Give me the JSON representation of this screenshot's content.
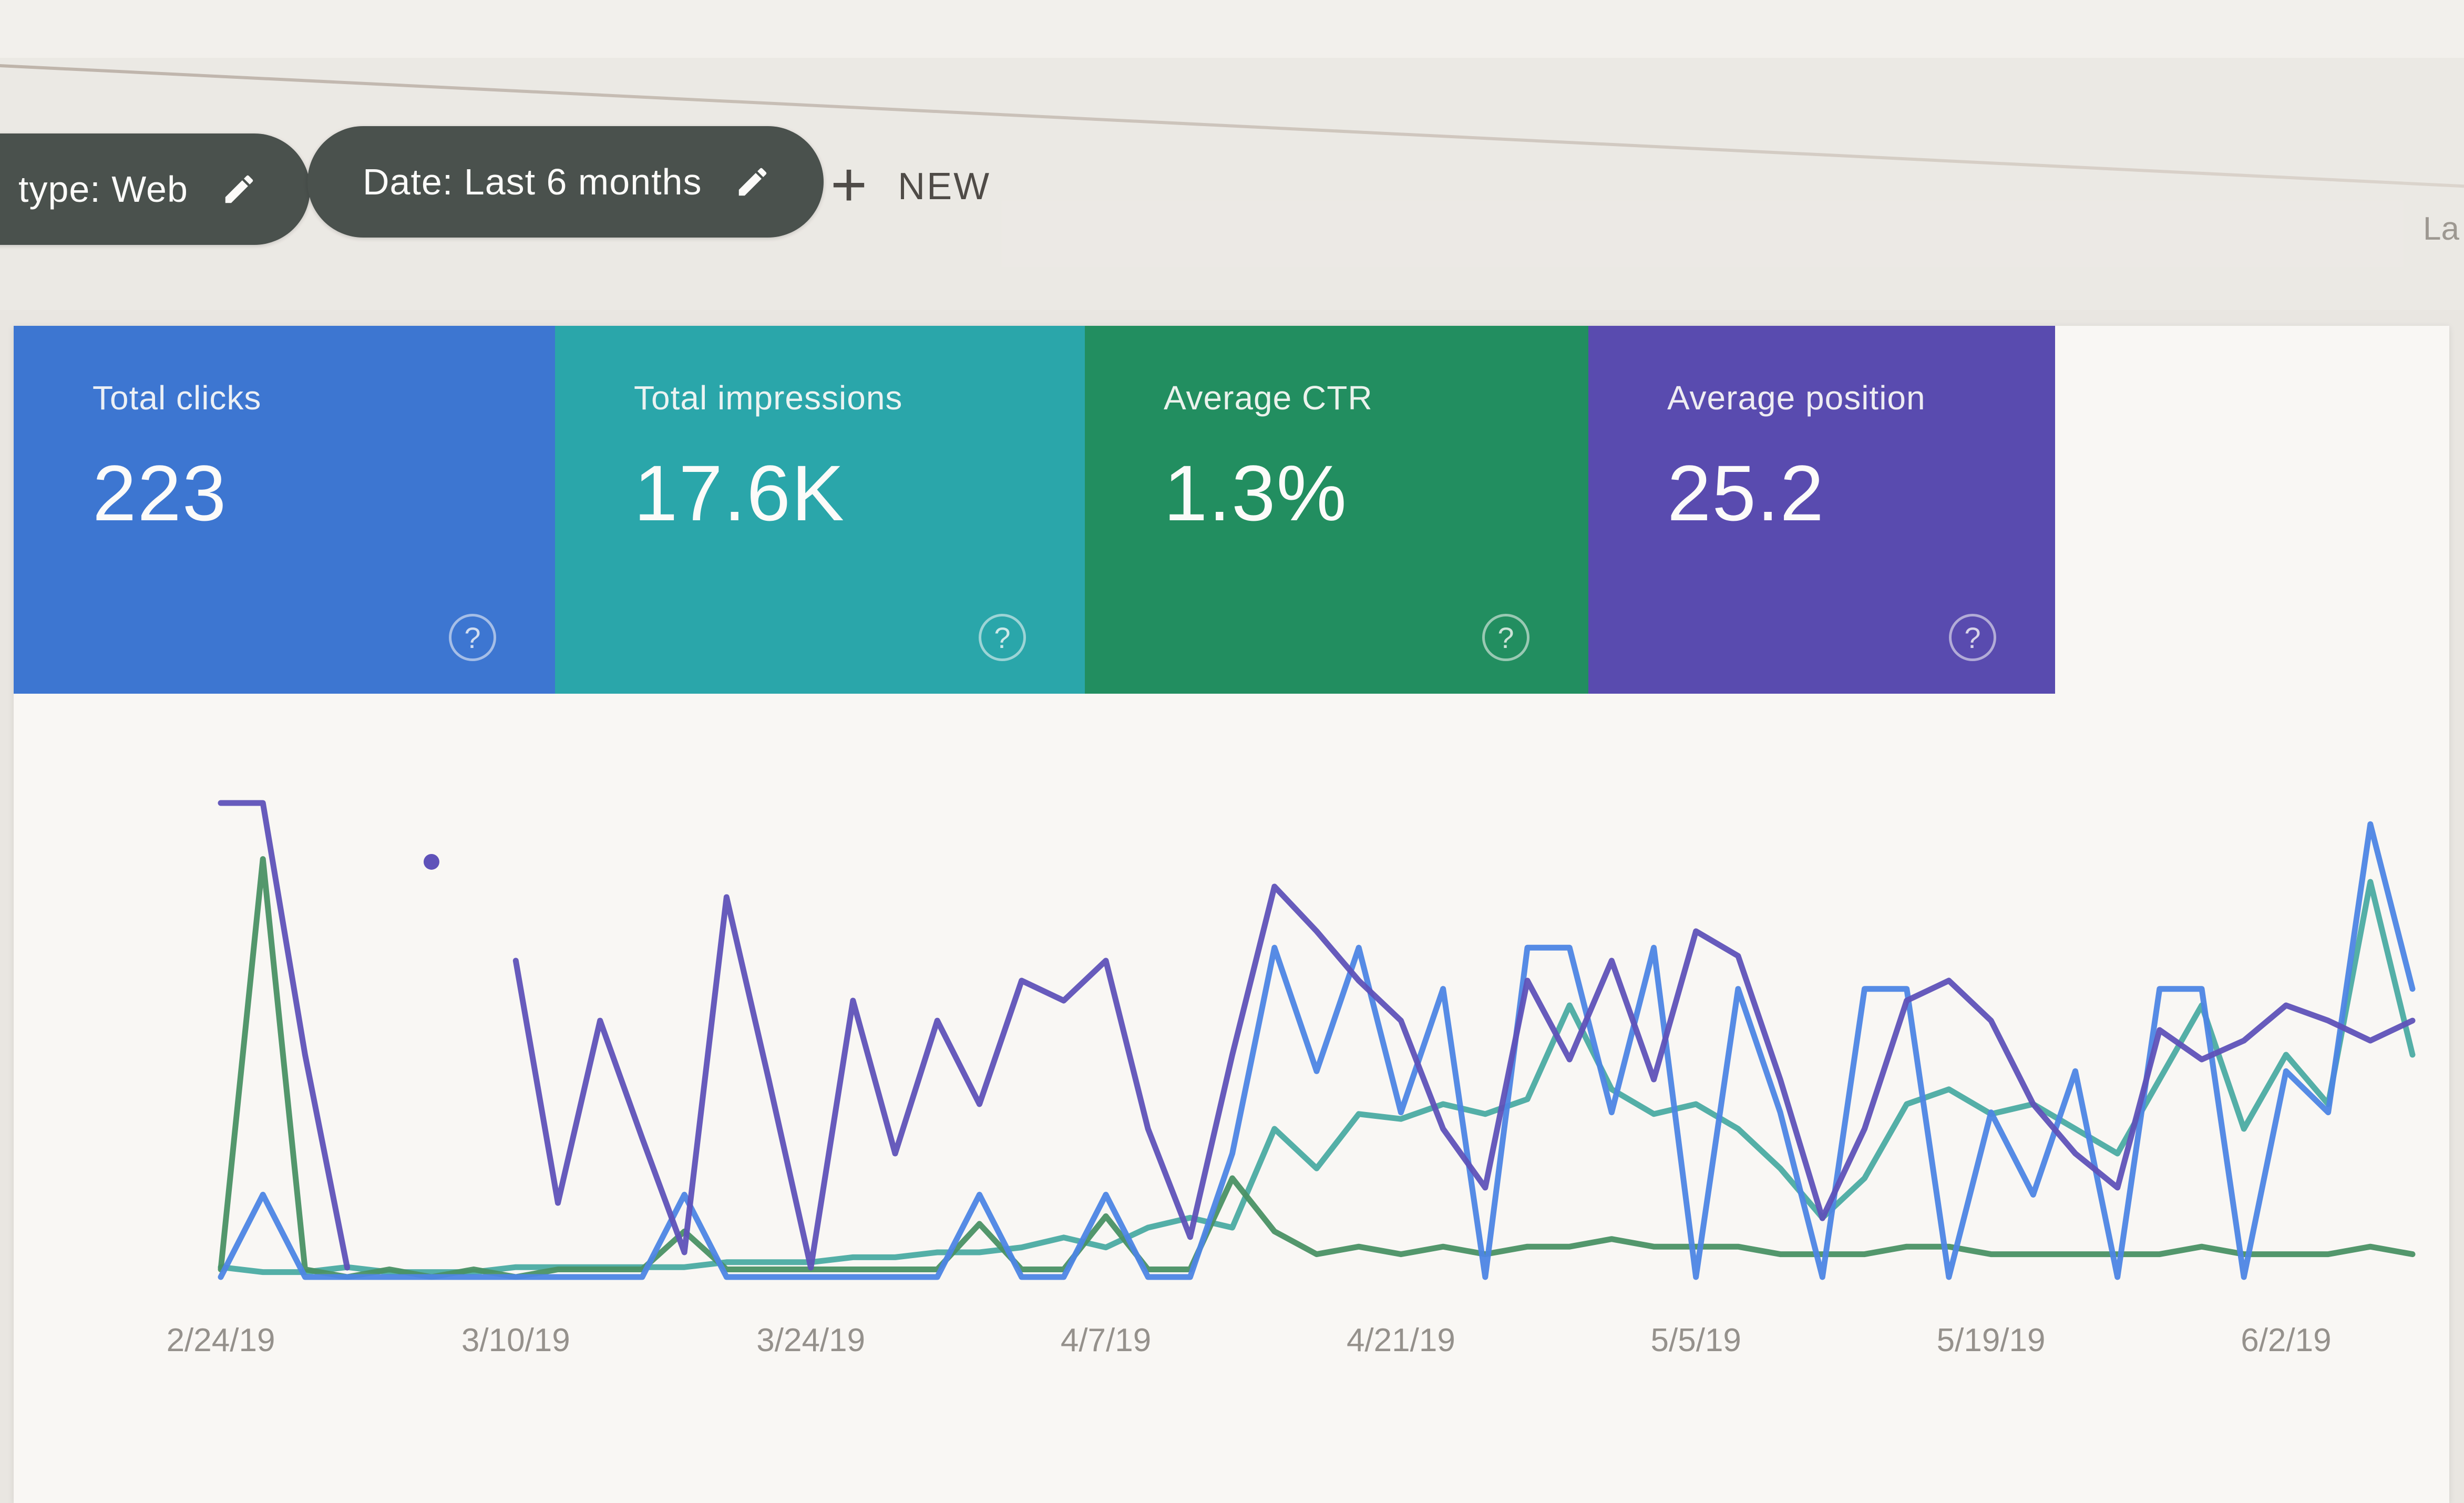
{
  "toolbar": {
    "chips": [
      {
        "label": "type: Web",
        "icon": "edit-pencil"
      },
      {
        "label": "Date: Last 6 months",
        "icon": "edit-pencil"
      }
    ],
    "new_button": {
      "plus": "+",
      "label": "NEW"
    },
    "partial_right_text": "La"
  },
  "summary_cards": [
    {
      "label": "Total clicks",
      "value": "223",
      "color": "#2b6bd3",
      "help_glyph": "?"
    },
    {
      "label": "Total impressions",
      "value": "17.6K",
      "color": "#16a1a8",
      "help_glyph": "?"
    },
    {
      "label": "Average CTR",
      "value": "1.3%",
      "color": "#0d8655",
      "help_glyph": "?"
    },
    {
      "label": "Average position",
      "value": "25.2",
      "color": "#4a3bad",
      "help_glyph": "?"
    }
  ],
  "chart_data": {
    "type": "line",
    "title": "Search performance over last 6 months (daily lines, no visible y-axis)",
    "x_labels": [
      "2/24/19",
      "3/10/19",
      "3/24/19",
      "4/7/19",
      "4/21/19",
      "5/5/19",
      "5/19/19",
      "6/2/19"
    ],
    "x_label_indices": [
      0,
      7,
      14,
      21,
      28,
      35,
      42,
      49
    ],
    "points_per_series": 53,
    "x_step_days": 2,
    "grid": false,
    "legend_position": "none (series colors match the summary cards)",
    "series": [
      {
        "name": "Total impressions",
        "color": "#3aa79f",
        "range": [
          0,
          500
        ],
        "values": [
          10,
          5,
          5,
          10,
          5,
          5,
          5,
          10,
          10,
          10,
          10,
          10,
          15,
          15,
          15,
          20,
          20,
          25,
          25,
          30,
          40,
          30,
          50,
          60,
          50,
          150,
          110,
          165,
          160,
          175,
          165,
          180,
          275,
          190,
          165,
          175,
          150,
          110,
          60,
          100,
          175,
          190,
          165,
          175,
          150,
          125,
          200,
          275,
          150,
          225,
          175,
          400,
          225
        ]
      },
      {
        "name": "Average CTR (%)",
        "color": "#398a5b",
        "range": [
          0,
          6.5
        ],
        "values": [
          0.1,
          5.5,
          0.1,
          0,
          0.1,
          0,
          0.1,
          0,
          0.1,
          0.1,
          0.1,
          0.6,
          0.1,
          0.1,
          0.1,
          0.1,
          0.1,
          0.1,
          0.7,
          0.1,
          0.1,
          0.8,
          0.1,
          0.1,
          1.3,
          0.6,
          0.3,
          0.4,
          0.3,
          0.4,
          0.3,
          0.4,
          0.4,
          0.5,
          0.4,
          0.4,
          0.4,
          0.3,
          0.3,
          0.3,
          0.4,
          0.4,
          0.3,
          0.3,
          0.3,
          0.3,
          0.3,
          0.4,
          0.3,
          0.3,
          0.3,
          0.4,
          0.3
        ]
      },
      {
        "name": "Total clicks",
        "color": "#3d7ce8",
        "range": [
          0,
          12
        ],
        "values": [
          0,
          2,
          0,
          0,
          0,
          0,
          0,
          0,
          0,
          0,
          0,
          2,
          0,
          0,
          0,
          0,
          0,
          0,
          2,
          0,
          0,
          2,
          0,
          0,
          3,
          8,
          5,
          8,
          4,
          7,
          0,
          8,
          8,
          4,
          8,
          0,
          7,
          4,
          0,
          7,
          7,
          0,
          4,
          2,
          5,
          0,
          7,
          7,
          0,
          5,
          4,
          11,
          7
        ]
      },
      {
        "name": "Average position",
        "color": "#5143b8",
        "range": [
          3,
          45
        ],
        "inverted": true,
        "values": [
          4.7,
          4.7,
          26.1,
          44.2,
          null,
          9.7,
          null,
          18.1,
          38.7,
          23.2,
          33.2,
          42.9,
          12.7,
          28.2,
          44.2,
          21.5,
          34.5,
          23.2,
          30.3,
          19.8,
          21.5,
          18.1,
          32.4,
          41.6,
          26.1,
          11.8,
          15.6,
          19.8,
          23.2,
          32.4,
          37.4,
          19.8,
          26.5,
          18.1,
          28.2,
          15.6,
          17.7,
          28.2,
          40.0,
          32.4,
          21.5,
          19.8,
          23.2,
          30.3,
          34.5,
          37.4,
          24.0,
          26.5,
          24.9,
          21.9,
          23.2,
          24.9,
          23.2
        ]
      }
    ]
  }
}
